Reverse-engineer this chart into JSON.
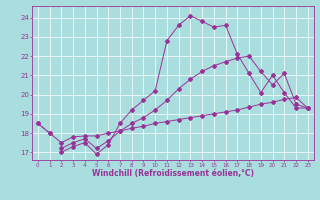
{
  "title": "",
  "xlabel": "Windchill (Refroidissement éolien,°C)",
  "background_color": "#aadddd",
  "line_color": "#993399",
  "grid_color": "#ffffff",
  "x_ticks": [
    0,
    1,
    2,
    3,
    4,
    5,
    6,
    7,
    8,
    9,
    10,
    11,
    12,
    13,
    14,
    15,
    16,
    17,
    18,
    19,
    20,
    21,
    22,
    23
  ],
  "y_ticks": [
    17,
    18,
    19,
    20,
    21,
    22,
    23,
    24
  ],
  "ylim": [
    16.6,
    24.6
  ],
  "xlim": [
    -0.5,
    23.5
  ],
  "series": [
    {
      "x": [
        0,
        1
      ],
      "y": [
        18.5,
        18.0
      ]
    },
    {
      "x": [
        2,
        3,
        4,
        5,
        6,
        7,
        8,
        9,
        10,
        11,
        12,
        13,
        14,
        15,
        16,
        17,
        18,
        19,
        20,
        21,
        22,
        23
      ],
      "y": [
        17.0,
        17.3,
        17.5,
        16.9,
        17.4,
        18.5,
        19.2,
        19.7,
        20.2,
        22.8,
        23.6,
        24.1,
        23.8,
        23.5,
        23.6,
        22.1,
        21.1,
        20.1,
        21.0,
        20.1,
        19.3,
        19.3
      ]
    },
    {
      "x": [
        0,
        1,
        2,
        3,
        4,
        5,
        6,
        7,
        8,
        9,
        10,
        11,
        12,
        13,
        14,
        15,
        16,
        17,
        18,
        19,
        20,
        21,
        22,
        23
      ],
      "y": [
        18.5,
        18.0,
        17.5,
        17.8,
        17.85,
        17.85,
        18.0,
        18.1,
        18.25,
        18.35,
        18.5,
        18.6,
        18.7,
        18.8,
        18.9,
        19.0,
        19.1,
        19.2,
        19.35,
        19.5,
        19.6,
        19.75,
        19.85,
        19.3
      ]
    },
    {
      "x": [
        2,
        3,
        4,
        5,
        6,
        7,
        8,
        9,
        10,
        11,
        12,
        13,
        14,
        15,
        16,
        17,
        18,
        19,
        20,
        21,
        22,
        23
      ],
      "y": [
        17.2,
        17.5,
        17.7,
        17.2,
        17.6,
        18.1,
        18.5,
        18.8,
        19.2,
        19.7,
        20.3,
        20.8,
        21.2,
        21.5,
        21.7,
        21.9,
        22.0,
        21.2,
        20.5,
        21.1,
        19.5,
        19.3
      ]
    }
  ]
}
